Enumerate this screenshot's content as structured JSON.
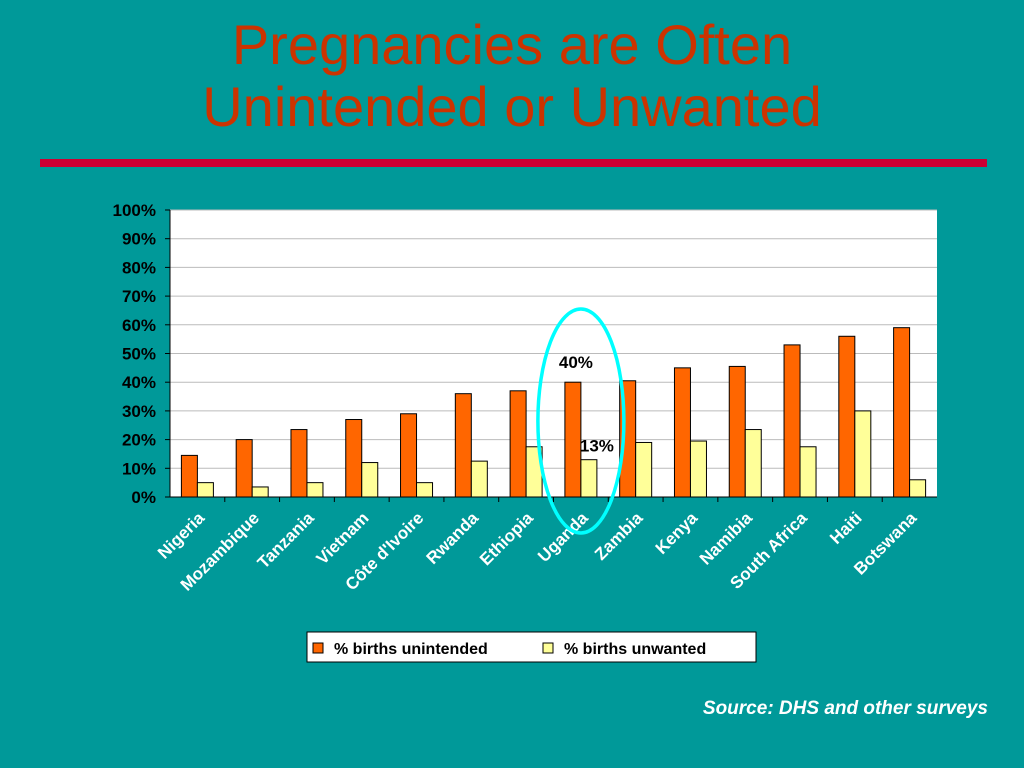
{
  "title": {
    "line1": "Pregnancies are Often",
    "line2": "Unintended or Unwanted"
  },
  "source": "Source: DHS and other surveys",
  "colors": {
    "background": "#009999",
    "title": "#CC3300",
    "rule": "#CC0033",
    "series_unintended": "#FF6600",
    "series_unwanted": "#FFFF99",
    "highlight": "#00FFFF"
  },
  "chart_data": {
    "type": "bar",
    "title": "",
    "xlabel": "",
    "ylabel": "",
    "ylim": [
      0,
      100
    ],
    "yticks": [
      "0%",
      "10%",
      "20%",
      "30%",
      "40%",
      "50%",
      "60%",
      "70%",
      "80%",
      "90%",
      "100%"
    ],
    "grid": true,
    "legend": "bottom",
    "categories": [
      "Nigeria",
      "Mozambique",
      "Tanzania",
      "Vietnam",
      "Côte d'Ivoire",
      "Rwanda",
      "Ethiopia",
      "Uganda",
      "Zambia",
      "Kenya",
      "Namibia",
      "South Africa",
      "Haiti",
      "Botswana"
    ],
    "series": [
      {
        "name": "% births unintended",
        "values": [
          14.5,
          20,
          23.5,
          27,
          29,
          36,
          37,
          40,
          40.5,
          45,
          45.5,
          53,
          56,
          59
        ]
      },
      {
        "name": "% births unwanted",
        "values": [
          5,
          3.5,
          5,
          12,
          5,
          12.5,
          17.5,
          13,
          19,
          19.5,
          23.5,
          17.5,
          30,
          6
        ]
      }
    ],
    "annotations": [
      {
        "text": "40%",
        "category": "Uganda",
        "series": 0
      },
      {
        "text": "13%",
        "category": "Uganda",
        "series": 1
      }
    ],
    "highlight_category": "Uganda"
  }
}
